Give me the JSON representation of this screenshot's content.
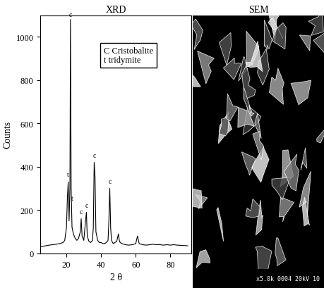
{
  "chart_data": [
    {
      "type": "line",
      "title": "XRD",
      "x_label": "2 θ",
      "y_label": "Counts",
      "x": [
        5,
        8,
        10,
        12,
        14,
        16,
        18,
        19,
        20,
        20.5,
        21,
        21.5,
        22,
        22.3,
        22.7,
        23.2,
        24,
        25,
        26,
        27,
        28,
        28.5,
        29,
        30,
        31,
        31.5,
        32,
        33,
        34,
        35,
        35.5,
        36,
        36.5,
        37,
        38,
        39,
        40,
        41,
        42,
        43,
        44,
        44.5,
        45,
        45.5,
        46,
        47,
        48,
        49,
        50,
        50.5,
        51,
        52,
        54,
        56,
        58,
        60,
        61,
        62,
        64,
        66,
        68,
        70,
        72,
        74,
        76,
        78,
        80,
        82,
        84,
        86,
        88,
        90
      ],
      "values": [
        30,
        35,
        38,
        40,
        42,
        45,
        50,
        60,
        120,
        250,
        330,
        150,
        300,
        1080,
        300,
        120,
        90,
        70,
        60,
        70,
        100,
        160,
        80,
        60,
        150,
        190,
        80,
        55,
        50,
        60,
        120,
        420,
        350,
        100,
        60,
        50,
        50,
        45,
        45,
        50,
        60,
        150,
        300,
        120,
        60,
        45,
        50,
        55,
        90,
        60,
        50,
        45,
        40,
        38,
        40,
        45,
        80,
        45,
        40,
        38,
        40,
        42,
        40,
        40,
        38,
        40,
        38,
        40,
        38,
        37,
        36,
        35
      ],
      "color": "#000000",
      "xlim": [
        5,
        92
      ],
      "xticks": [
        20,
        40,
        60,
        80
      ],
      "ylim": [
        0,
        1100
      ],
      "yticks": [
        0,
        200,
        400,
        600,
        800,
        1000
      ],
      "legend_box": [
        "C Cristobalite",
        "t tridymite"
      ],
      "annotations": [
        {
          "x": 20.8,
          "y": 340,
          "text": "t"
        },
        {
          "x": 22.3,
          "y": 1080,
          "text": "c"
        },
        {
          "x": 23.5,
          "y": 230,
          "text": "t"
        },
        {
          "x": 28.5,
          "y": 170,
          "text": "c"
        },
        {
          "x": 31.5,
          "y": 200,
          "text": "c"
        },
        {
          "x": 36,
          "y": 430,
          "text": "c"
        },
        {
          "x": 45,
          "y": 310,
          "text": "c"
        }
      ]
    },
    {
      "type": "image",
      "title": "SEM",
      "caption": "x5.0k 0004 20kV 10"
    }
  ]
}
